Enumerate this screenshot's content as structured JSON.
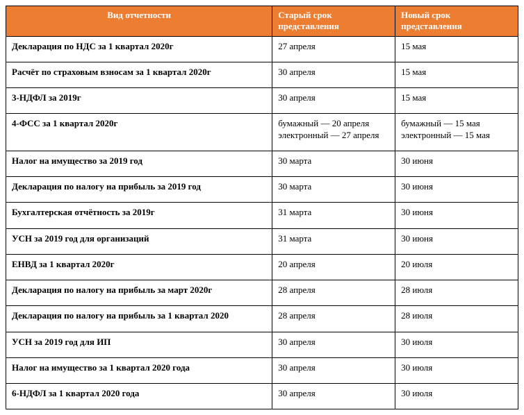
{
  "table": {
    "header_bg": "#ed7d31",
    "header_fg": "#ffffff",
    "border_color": "#000000",
    "background_color": "#ffffff",
    "font_family": "Times New Roman",
    "font_size_pt": 10,
    "columns": [
      {
        "key": "type",
        "label": "Вид отчетности",
        "width_pct": 52,
        "header_align": "center"
      },
      {
        "key": "old",
        "label": "Старый срок представления",
        "width_pct": 24,
        "header_align": "left"
      },
      {
        "key": "new",
        "label": "Новый срок представления",
        "width_pct": 24,
        "header_align": "left"
      }
    ],
    "rows": [
      {
        "type": "Декларация по НДС за 1 квартал 2020г",
        "old": "27 апреля",
        "new": "15 мая"
      },
      {
        "type": "Расчёт по страховым взносам за 1 квартал 2020г",
        "old": "30 апреля",
        "new": "15 мая"
      },
      {
        "type": "3-НДФЛ за 2019г",
        "old": "30 апреля",
        "new": "15 мая"
      },
      {
        "type": "4-ФСС за 1 квартал 2020г",
        "old_lines": [
          "бумажный — 20 апреля",
          "электронный — 27 апреля"
        ],
        "new_lines": [
          "бумажный — 15 мая",
          "электронный — 15 мая"
        ]
      },
      {
        "type": "Налог на имущество за 2019 год",
        "old": "30 марта",
        "new": "30 июня"
      },
      {
        "type": "Декларация по налогу на прибыль за 2019 год",
        "old": "30 марта",
        "new": "30 июня"
      },
      {
        "type": "Бухгалтерская отчётность за 2019г",
        "old": "31 марта",
        "new": "30 июня"
      },
      {
        "type": "УСН за 2019 год для организаций",
        "old": "31 марта",
        "new": "30 июня"
      },
      {
        "type": "ЕНВД за 1 квартал 2020г",
        "old": "20 апреля",
        "new": "20 июля"
      },
      {
        "type": "Декларация по налогу на прибыль за март 2020г",
        "old": "28 апреля",
        "new": "28 июля"
      },
      {
        "type": "Декларация по налогу на прибыль за 1 квартал 2020",
        "old": "28 апреля",
        "new": "28 июля"
      },
      {
        "type": "УСН за 2019 год для ИП",
        "old": "30 апреля",
        "new": "30 июля"
      },
      {
        "type": "Налог на имущество за 1 квартал 2020 года",
        "old": "30 апреля",
        "new": "30 июля"
      },
      {
        "type": "6-НДФЛ за 1 квартал 2020 года",
        "old": "30 апреля",
        "new": "30 июля"
      }
    ]
  }
}
